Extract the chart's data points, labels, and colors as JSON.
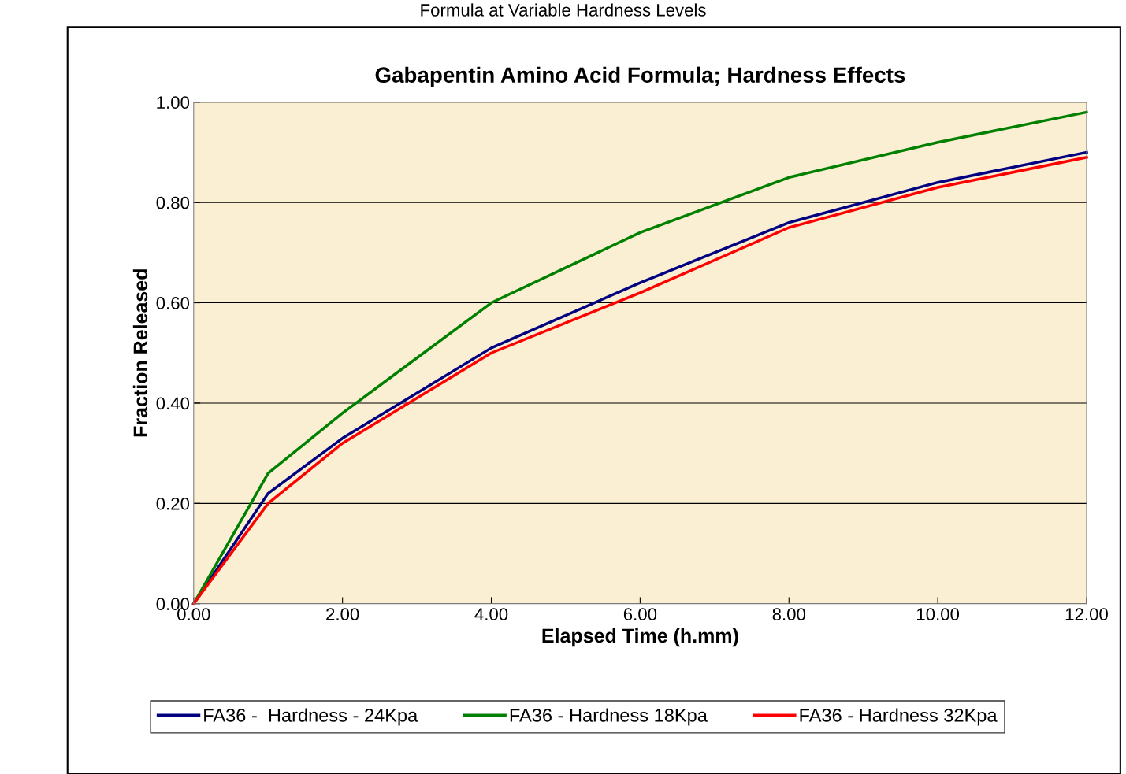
{
  "chart_data": {
    "type": "line",
    "title": "Gabapentin Amino Acid Formula; Hardness Effects",
    "annotations": [
      "Formula at Variable Hardness Levels"
    ],
    "xlabel": "Elapsed Time (h.mm)",
    "ylabel": "Fraction Released",
    "x": [
      0,
      1,
      2,
      4,
      6,
      8,
      10,
      12
    ],
    "series": [
      {
        "name": "FA36 -  Hardness - 24Kpa",
        "color": "#000080",
        "values": [
          0,
          0.22,
          0.33,
          0.51,
          0.64,
          0.76,
          0.84,
          0.9
        ]
      },
      {
        "name": "FA36 - Hardness 18Kpa",
        "color": "#008000",
        "values": [
          0,
          0.26,
          0.38,
          0.6,
          0.74,
          0.85,
          0.92,
          0.98
        ]
      },
      {
        "name": "FA36 - Hardness 32Kpa",
        "color": "#ff0000",
        "values": [
          0,
          0.2,
          0.32,
          0.5,
          0.62,
          0.75,
          0.83,
          0.89
        ]
      }
    ],
    "xlim": [
      0,
      12
    ],
    "ylim": [
      0,
      1
    ],
    "xticks": [
      {
        "value": 0,
        "label": "0.00"
      },
      {
        "value": 2,
        "label": "2.00"
      },
      {
        "value": 4,
        "label": "4.00"
      },
      {
        "value": 6,
        "label": "6.00"
      },
      {
        "value": 8,
        "label": "8.00"
      },
      {
        "value": 10,
        "label": "10.00"
      },
      {
        "value": 12,
        "label": "12.00"
      }
    ],
    "yticks": [
      {
        "value": 0,
        "label": "0.00"
      },
      {
        "value": 0.2,
        "label": "0.20"
      },
      {
        "value": 0.4,
        "label": "0.40"
      },
      {
        "value": 0.6,
        "label": "0.60"
      },
      {
        "value": 0.8,
        "label": "0.80"
      },
      {
        "value": 1,
        "label": "1.00"
      }
    ],
    "grid": "y",
    "legend": "bottom",
    "marker": "none",
    "line_style": "solid"
  }
}
